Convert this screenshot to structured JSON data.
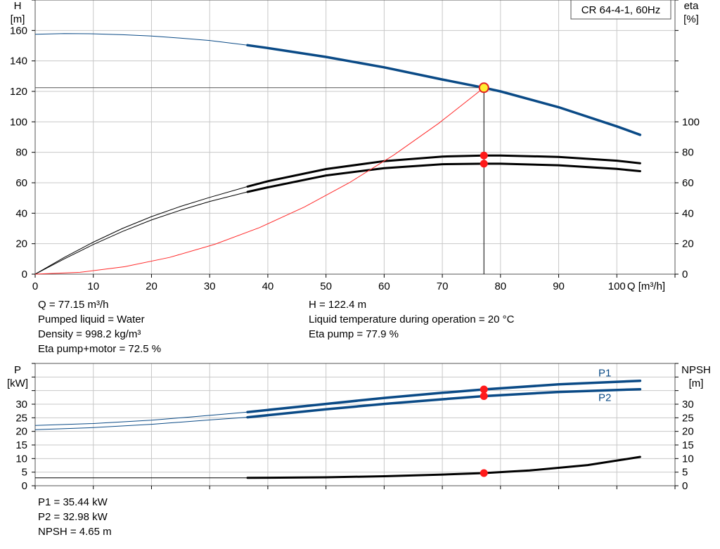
{
  "chart_data": [
    {
      "type": "line",
      "title": "CR 64-4-1, 60Hz",
      "xlabel": "Q [m³/h]",
      "ylabel_left": [
        "H",
        "[m]"
      ],
      "ylabel_right": [
        "eta",
        "[%]"
      ],
      "xlim": [
        0,
        110
      ],
      "ylim_left": [
        0,
        180
      ],
      "ylim_right": [
        0,
        180
      ],
      "grid": true,
      "x_ticks": [
        0,
        10,
        20,
        30,
        40,
        50,
        60,
        70,
        80,
        90,
        100
      ],
      "y_ticks_left": [
        0,
        20,
        40,
        60,
        80,
        100,
        120,
        140,
        160
      ],
      "y_ticks_right": [
        0,
        20,
        40,
        60,
        80,
        100
      ],
      "operating_point": {
        "q": 77.15,
        "h": 122.4,
        "eta_pump": 77.9,
        "eta_total": 72.5
      },
      "series": [
        {
          "role": "H",
          "axis": "left",
          "color": "#0a4a86",
          "thin": [
            [
              0,
              157.5
            ],
            [
              5,
              158.0
            ],
            [
              10,
              157.8
            ],
            [
              15,
              157.2
            ],
            [
              20,
              156.3
            ],
            [
              25,
              155.0
            ],
            [
              30,
              153.4
            ],
            [
              36.5,
              150.3
            ]
          ],
          "bold": [
            [
              36.5,
              150.3
            ],
            [
              40,
              148.5
            ],
            [
              50,
              142.6
            ],
            [
              60,
              135.8
            ],
            [
              70,
              127.8
            ],
            [
              77.15,
              122.4
            ],
            [
              80,
              120.0
            ],
            [
              90,
              109.6
            ],
            [
              100,
              97.0
            ],
            [
              104,
              91.5
            ]
          ]
        },
        {
          "role": "eta-pump",
          "axis": "right",
          "color": "#000000",
          "thin": [
            [
              0,
              0
            ],
            [
              5,
              11
            ],
            [
              10,
              21
            ],
            [
              15,
              30
            ],
            [
              20,
              37.8
            ],
            [
              25,
              44.5
            ],
            [
              30,
              50.4
            ],
            [
              36.5,
              57.5
            ]
          ],
          "bold": [
            [
              36.5,
              57.5
            ],
            [
              40,
              61
            ],
            [
              50,
              69
            ],
            [
              60,
              74.2
            ],
            [
              70,
              77.2
            ],
            [
              77.15,
              77.9
            ],
            [
              80,
              77.9
            ],
            [
              90,
              77
            ],
            [
              100,
              74.5
            ],
            [
              104,
              72.8
            ]
          ]
        },
        {
          "role": "eta-total",
          "axis": "right",
          "color": "#000000",
          "thin": [
            [
              0,
              0
            ],
            [
              5,
              10
            ],
            [
              10,
              19.5
            ],
            [
              15,
              28
            ],
            [
              20,
              35.6
            ],
            [
              25,
              42
            ],
            [
              30,
              47.7
            ],
            [
              36.5,
              54
            ]
          ],
          "bold": [
            [
              36.5,
              54
            ],
            [
              40,
              57
            ],
            [
              50,
              64.8
            ],
            [
              60,
              69.6
            ],
            [
              70,
              72.2
            ],
            [
              77.15,
              72.5
            ],
            [
              80,
              72.5
            ],
            [
              90,
              71.5
            ],
            [
              100,
              69.1
            ],
            [
              104,
              67.6
            ]
          ]
        },
        {
          "role": "system",
          "axis": "left",
          "color": "#ff2a2a",
          "thin": [
            [
              0,
              0
            ],
            [
              7.7,
              1.2
            ],
            [
              15.4,
              4.9
            ],
            [
              23.1,
              11
            ],
            [
              30.9,
              19.6
            ],
            [
              38.6,
              30.6
            ],
            [
              46.3,
              44.1
            ],
            [
              54,
              60
            ],
            [
              61.7,
              78.3
            ],
            [
              69.4,
              99.1
            ],
            [
              77.15,
              122.4
            ]
          ]
        }
      ]
    },
    {
      "type": "line",
      "xlim": [
        0,
        110
      ],
      "ylabel_left": [
        "P",
        "[kW]"
      ],
      "ylabel_right": [
        "NPSH",
        "[m]"
      ],
      "ylim_left": [
        0,
        45
      ],
      "ylim_right": [
        0,
        45
      ],
      "grid": true,
      "y_ticks_left": [
        0,
        5,
        10,
        15,
        20,
        25,
        30
      ],
      "y_ticks_right": [
        0,
        5,
        10,
        15,
        20,
        25,
        30
      ],
      "operating_point": {
        "q": 77.15,
        "p1": 35.44,
        "p2": 32.98,
        "npsh": 4.65
      },
      "series": [
        {
          "name": "P1",
          "axis": "left",
          "color": "#0a4a86",
          "thin": [
            [
              0,
              22.2
            ],
            [
              10,
              22.9
            ],
            [
              20,
              24.1
            ],
            [
              30,
              25.9
            ],
            [
              36.5,
              27.1
            ]
          ],
          "bold": [
            [
              36.5,
              27.1
            ],
            [
              50,
              30.1
            ],
            [
              60,
              32.3
            ],
            [
              70,
              34.2
            ],
            [
              77.15,
              35.44
            ],
            [
              90,
              37.3
            ],
            [
              104,
              38.6
            ]
          ]
        },
        {
          "name": "P2",
          "axis": "left",
          "color": "#0a4a86",
          "thin": [
            [
              0,
              20.6
            ],
            [
              10,
              21.4
            ],
            [
              20,
              22.6
            ],
            [
              30,
              24.2
            ],
            [
              36.5,
              25.2
            ]
          ],
          "bold": [
            [
              36.5,
              25.2
            ],
            [
              50,
              28.1
            ],
            [
              60,
              30.1
            ],
            [
              70,
              31.8
            ],
            [
              77.15,
              32.98
            ],
            [
              90,
              34.5
            ],
            [
              104,
              35.5
            ]
          ]
        },
        {
          "name": "",
          "axis": "right",
          "color": "#000000",
          "thin": [
            [
              0,
              2.9
            ],
            [
              36.5,
              2.9
            ]
          ],
          "bold": [
            [
              36.5,
              2.9
            ],
            [
              50,
              3.1
            ],
            [
              60,
              3.5
            ],
            [
              70,
              4.1
            ],
            [
              77.15,
              4.65
            ],
            [
              85,
              5.6
            ],
            [
              95,
              7.6
            ],
            [
              104,
              10.6
            ]
          ]
        }
      ]
    }
  ],
  "info_top": {
    "left": [
      "Q = 77.15 m³/h",
      "Pumped liquid = Water",
      "Density = 998.2 kg/m³",
      "Eta pump+motor = 72.5 %"
    ],
    "right": [
      "H = 122.4 m",
      "Liquid temperature during operation = 20 °C",
      "Eta pump = 77.9 %"
    ]
  },
  "info_bottom": {
    "left": [
      "P1 = 35.44 kW",
      "P2 = 32.98 kW",
      "NPSH = 4.65 m"
    ]
  }
}
